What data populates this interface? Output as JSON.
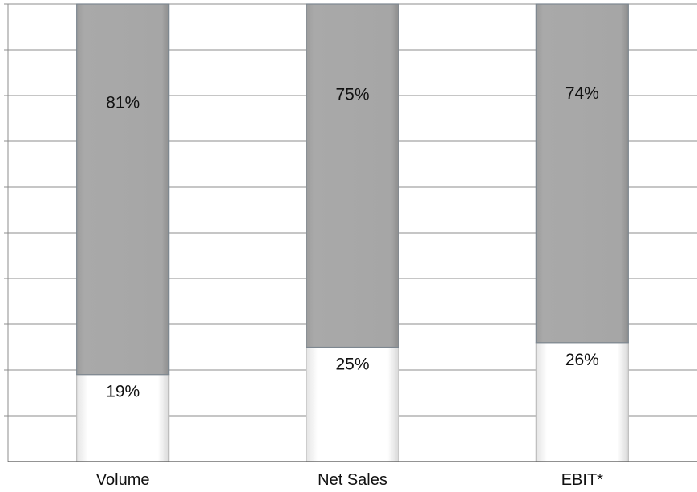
{
  "chart_data": {
    "type": "bar",
    "stacked": true,
    "percent_stacked": true,
    "categories": [
      "Volume",
      "Net Sales",
      "EBIT*"
    ],
    "series": [
      {
        "values": [
          19,
          25,
          26
        ],
        "labels": [
          "19%",
          "25%",
          "26%"
        ],
        "color": "#ffffff"
      },
      {
        "values": [
          81,
          75,
          74
        ],
        "labels": [
          "81%",
          "75%",
          "74%"
        ],
        "color": "#a6a6a6"
      }
    ],
    "ylim": [
      0,
      100
    ],
    "y_gridlines": 10,
    "y_tick_labels_shown": false,
    "grid": true,
    "legend": "none"
  }
}
